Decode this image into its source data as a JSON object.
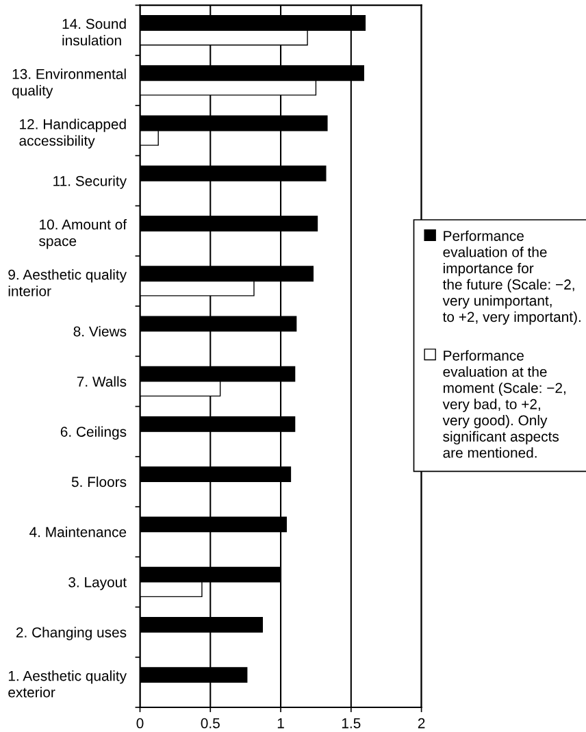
{
  "chart_data": {
    "type": "bar",
    "orientation": "horizontal",
    "categories": [
      "14. Sound\ninsulation",
      "13. Environmental\nquality",
      "12. Handicapped\naccessibility",
      "11. Security",
      "10. Amount of\nspace",
      "9. Aesthetic quality\ninterior",
      "8. Views",
      "7. Walls",
      "6. Ceilings",
      "5. Floors",
      "4. Maintenance",
      "3. Layout",
      "2. Changing uses",
      "1. Aesthetic quality\nexterior"
    ],
    "series": [
      {
        "name": "Performance\nevaluation of the\nimportance for\nthe future (Scale: −2,\nvery unimportant,\nto +2, very important).",
        "color": "#000000",
        "values": [
          1.6,
          1.59,
          1.33,
          1.32,
          1.26,
          1.23,
          1.11,
          1.1,
          1.1,
          1.07,
          1.04,
          1.0,
          0.87,
          0.76
        ]
      },
      {
        "name": "Performance\nevaluation at the\nmoment (Scale: −2,\nvery bad, to +2,\nvery good). Only\nsignificant aspects\nare mentioned.",
        "color": "#ffffff",
        "values": [
          1.19,
          1.25,
          0.13,
          null,
          null,
          0.81,
          null,
          0.57,
          null,
          null,
          null,
          0.44,
          null,
          null
        ]
      }
    ],
    "xlim": [
      0,
      2
    ],
    "xticks": [
      0,
      0.5,
      1,
      1.5,
      2
    ],
    "grid": "x",
    "legend": "right"
  }
}
